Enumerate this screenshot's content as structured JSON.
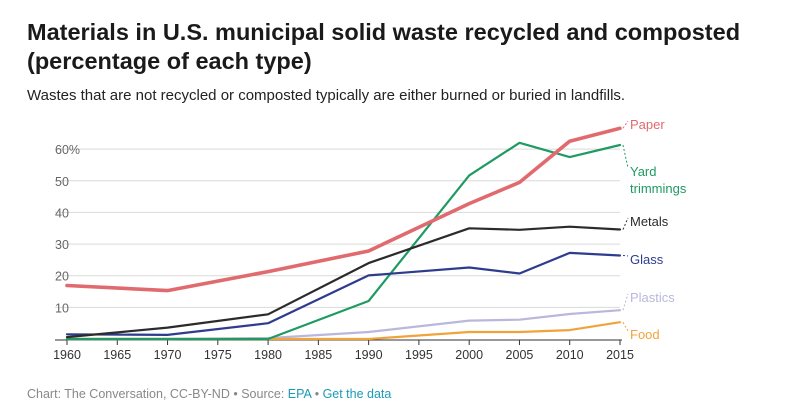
{
  "title": "Materials in U.S. municipal solid waste recycled and composted (percentage of each type)",
  "subtitle": "Wastes that are not recycled or composted typically are either burned or buried in landfills.",
  "footer": {
    "credit": "Chart: The Conversation, CC-BY-ND",
    "separator": "•",
    "source_prefix": "Source:",
    "source_link": "EPA",
    "data_link": "Get the data"
  },
  "chart_data": {
    "type": "line",
    "x": [
      1960,
      1970,
      1980,
      1990,
      2000,
      2005,
      2010,
      2015
    ],
    "xticks": [
      "1960",
      "1965",
      "1970",
      "1975",
      "1980",
      "1985",
      "1990",
      "1995",
      "2000",
      "2005",
      "2010",
      "2015"
    ],
    "yticks": [
      "",
      "10",
      "20",
      "30",
      "40",
      "50",
      "60%"
    ],
    "ylim": [
      0,
      67
    ],
    "xlim": [
      1960,
      2015
    ],
    "grid": true,
    "series": [
      {
        "name": "Paper",
        "color": "#e06a6e",
        "values": [
          16.9,
          15.3,
          21.3,
          27.8,
          42.8,
          49.5,
          62.5,
          66.6
        ]
      },
      {
        "name": "Yard trimmings",
        "color": "#1f9a63",
        "values": [
          0,
          0,
          0,
          12.0,
          51.7,
          62.0,
          57.5,
          61.3
        ]
      },
      {
        "name": "Metals",
        "color": "#2b2b2b",
        "values": [
          0.6,
          3.6,
          7.8,
          24.0,
          35.0,
          34.5,
          35.5,
          34.6
        ]
      },
      {
        "name": "Glass",
        "color": "#2e3c8d",
        "values": [
          1.5,
          1.3,
          5.0,
          20.1,
          22.6,
          20.7,
          27.2,
          26.4
        ]
      },
      {
        "name": "Plastics",
        "color": "#b9b8dc",
        "values": [
          0,
          0,
          0.3,
          2.2,
          5.8,
          6.1,
          7.9,
          9.1
        ]
      },
      {
        "name": "Food",
        "color": "#f0a33a",
        "values": [
          0,
          0,
          0,
          0,
          2.2,
          2.2,
          2.8,
          5.3
        ]
      }
    ],
    "legend": [
      {
        "lines": [
          "Paper"
        ],
        "color": "#e06a6e"
      },
      {
        "lines": [
          "Yard",
          "trimmings"
        ],
        "color": "#1f9a63"
      },
      {
        "lines": [
          "Metals"
        ],
        "color": "#2b2b2b"
      },
      {
        "lines": [
          "Glass"
        ],
        "color": "#2e3c8d"
      },
      {
        "lines": [
          "Plastics"
        ],
        "color": "#b9b8dc"
      },
      {
        "lines": [
          "Food"
        ],
        "color": "#f0a33a"
      }
    ]
  }
}
